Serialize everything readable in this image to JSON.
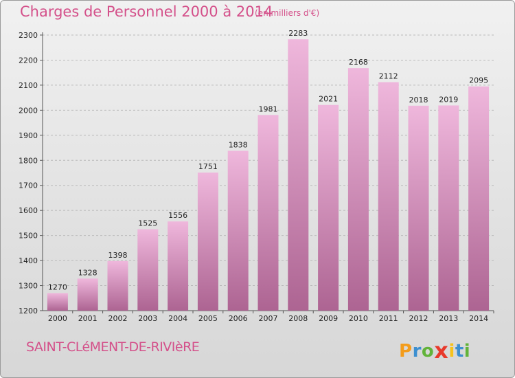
{
  "header": {
    "title": "Charges de Personnel 2000 à 2014",
    "unit": "(en milliers d'€)"
  },
  "footer": {
    "commune": "SAINT-CLéMENT-DE-RIVIèRE",
    "logo_letters": [
      "P",
      "r",
      "o",
      "x",
      "i",
      "t",
      "i"
    ],
    "logo_colors": [
      "#f39c1b",
      "#3c8fd0",
      "#62b33a",
      "#e8392b",
      "#f6c21c",
      "#3c8fd0",
      "#62b33a"
    ]
  },
  "colors": {
    "accent": "#d4508a",
    "bar_top": "#efb7dc",
    "bar_bottom": "#ad6492"
  },
  "chart_data": {
    "type": "bar",
    "title": "Charges de Personnel 2000 à 2014",
    "subtitle": "(en milliers d'€)",
    "categories": [
      "2000",
      "2001",
      "2002",
      "2003",
      "2004",
      "2005",
      "2006",
      "2007",
      "2008",
      "2009",
      "2010",
      "2011",
      "2012",
      "2013",
      "2014"
    ],
    "values": [
      1270,
      1328,
      1398,
      1525,
      1556,
      1751,
      1838,
      1981,
      2283,
      2021,
      2168,
      2112,
      2018,
      2019,
      2095
    ],
    "ylim": [
      1200,
      2300
    ],
    "yticks": [
      1200,
      1300,
      1400,
      1500,
      1600,
      1700,
      1800,
      1900,
      2000,
      2100,
      2200,
      2300
    ],
    "grid": true,
    "xlabel": "",
    "ylabel": ""
  }
}
